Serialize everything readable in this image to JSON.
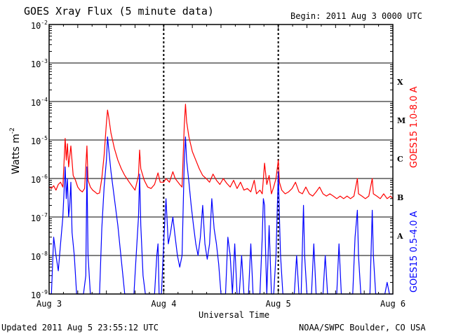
{
  "header": {
    "title": "GOES Xray Flux (5 minute data)",
    "begin": "Begin:  2011 Aug 3 0000 UTC"
  },
  "footer": {
    "updated": "Updated 2011 Aug  5 23:55:12 UTC",
    "credit": "NOAA/SWPC Boulder, CO USA"
  },
  "chart_data": {
    "type": "line",
    "title": "GOES Xray Flux (5 minute data)",
    "xlabel": "Universal Time",
    "ylabel": "Watts m",
    "ylabel_sup": "-2",
    "yscale": "log",
    "ylim": [
      1e-09,
      0.01
    ],
    "x_ticks": [
      "Aug 3",
      "Aug 4",
      "Aug 5",
      "Aug 6"
    ],
    "y_ticks": [
      {
        "base": "10",
        "exp": "-2"
      },
      {
        "base": "10",
        "exp": "-3"
      },
      {
        "base": "10",
        "exp": "-4"
      },
      {
        "base": "10",
        "exp": "-5"
      },
      {
        "base": "10",
        "exp": "-6"
      },
      {
        "base": "10",
        "exp": "-7"
      },
      {
        "base": "10",
        "exp": "-8"
      },
      {
        "base": "10",
        "exp": "-9"
      }
    ],
    "flare_classes": [
      "X",
      "M",
      "C",
      "B",
      "A"
    ],
    "grid": true,
    "series": [
      {
        "name": "GOES15 1.0-8.0 A",
        "color": "#ff0000",
        "points": [
          [
            0.0,
            6e-07
          ],
          [
            0.02,
            5.5e-07
          ],
          [
            0.04,
            6.5e-07
          ],
          [
            0.06,
            5e-07
          ],
          [
            0.08,
            7e-07
          ],
          [
            0.1,
            8e-07
          ],
          [
            0.12,
            6e-07
          ],
          [
            0.14,
            1.1e-05
          ],
          [
            0.15,
            3e-06
          ],
          [
            0.16,
            8e-06
          ],
          [
            0.17,
            2e-06
          ],
          [
            0.19,
            7e-06
          ],
          [
            0.21,
            1.2e-06
          ],
          [
            0.23,
            9e-07
          ],
          [
            0.25,
            6e-07
          ],
          [
            0.27,
            5e-07
          ],
          [
            0.29,
            4.5e-07
          ],
          [
            0.31,
            5.5e-07
          ],
          [
            0.33,
            7e-06
          ],
          [
            0.34,
            9e-07
          ],
          [
            0.36,
            6e-07
          ],
          [
            0.38,
            5e-07
          ],
          [
            0.4,
            4.5e-07
          ],
          [
            0.42,
            4e-07
          ],
          [
            0.44,
            4.2e-07
          ],
          [
            0.46,
            1e-06
          ],
          [
            0.48,
            4e-06
          ],
          [
            0.5,
            2.8e-05
          ],
          [
            0.51,
            6e-05
          ],
          [
            0.52,
            4e-05
          ],
          [
            0.54,
            1.5e-05
          ],
          [
            0.57,
            6e-06
          ],
          [
            0.6,
            3e-06
          ],
          [
            0.63,
            1.8e-06
          ],
          [
            0.66,
            1.2e-06
          ],
          [
            0.7,
            8e-07
          ],
          [
            0.73,
            6e-07
          ],
          [
            0.75,
            5e-07
          ],
          [
            0.78,
            1.2e-06
          ],
          [
            0.79,
            5.5e-06
          ],
          [
            0.8,
            1.8e-06
          ],
          [
            0.83,
            9e-07
          ],
          [
            0.86,
            6e-07
          ],
          [
            0.89,
            5.5e-07
          ],
          [
            0.92,
            7e-07
          ],
          [
            0.95,
            1.4e-06
          ],
          [
            0.97,
            8e-07
          ],
          [
            1.0,
            8e-07
          ],
          [
            1.02,
            1e-06
          ],
          [
            1.05,
            8e-07
          ],
          [
            1.08,
            1.5e-06
          ],
          [
            1.1,
            1e-06
          ],
          [
            1.14,
            7e-07
          ],
          [
            1.16,
            6e-07
          ],
          [
            1.18,
            2.5e-05
          ],
          [
            1.19,
            8.5e-05
          ],
          [
            1.2,
            3e-05
          ],
          [
            1.22,
            1.2e-05
          ],
          [
            1.25,
            5e-06
          ],
          [
            1.28,
            3e-06
          ],
          [
            1.31,
            1.8e-06
          ],
          [
            1.34,
            1.2e-06
          ],
          [
            1.37,
            1e-06
          ],
          [
            1.4,
            8e-07
          ],
          [
            1.43,
            1.3e-06
          ],
          [
            1.46,
            9e-07
          ],
          [
            1.49,
            7e-07
          ],
          [
            1.52,
            1e-06
          ],
          [
            1.55,
            7.5e-07
          ],
          [
            1.58,
            6e-07
          ],
          [
            1.61,
            9e-07
          ],
          [
            1.64,
            5.5e-07
          ],
          [
            1.67,
            8e-07
          ],
          [
            1.7,
            5e-07
          ],
          [
            1.73,
            5.5e-07
          ],
          [
            1.76,
            4.5e-07
          ],
          [
            1.79,
            9e-07
          ],
          [
            1.81,
            4e-07
          ],
          [
            1.84,
            5e-07
          ],
          [
            1.86,
            4e-07
          ],
          [
            1.88,
            2.5e-06
          ],
          [
            1.9,
            7e-07
          ],
          [
            1.92,
            1.2e-06
          ],
          [
            1.94,
            4e-07
          ],
          [
            1.96,
            6e-07
          ],
          [
            1.98,
            1e-06
          ],
          [
            2.0,
            3e-06
          ],
          [
            2.01,
            8e-07
          ],
          [
            2.03,
            5e-07
          ],
          [
            2.06,
            4e-07
          ],
          [
            2.09,
            4.5e-07
          ],
          [
            2.12,
            5.5e-07
          ],
          [
            2.15,
            8e-07
          ],
          [
            2.18,
            4.5e-07
          ],
          [
            2.21,
            4e-07
          ],
          [
            2.24,
            6e-07
          ],
          [
            2.27,
            4e-07
          ],
          [
            2.3,
            3.5e-07
          ],
          [
            2.33,
            4.5e-07
          ],
          [
            2.36,
            6e-07
          ],
          [
            2.39,
            4e-07
          ],
          [
            2.42,
            3.5e-07
          ],
          [
            2.45,
            4e-07
          ],
          [
            2.48,
            3.5e-07
          ],
          [
            2.51,
            3e-07
          ],
          [
            2.54,
            3.5e-07
          ],
          [
            2.57,
            3e-07
          ],
          [
            2.6,
            3.5e-07
          ],
          [
            2.63,
            3e-07
          ],
          [
            2.66,
            3.5e-07
          ],
          [
            2.69,
            1e-06
          ],
          [
            2.7,
            4e-07
          ],
          [
            2.73,
            3.5e-07
          ],
          [
            2.76,
            3e-07
          ],
          [
            2.79,
            3.5e-07
          ],
          [
            2.82,
            1e-06
          ],
          [
            2.83,
            4e-07
          ],
          [
            2.86,
            3.5e-07
          ],
          [
            2.89,
            3e-07
          ],
          [
            2.92,
            4e-07
          ],
          [
            2.95,
            3e-07
          ],
          [
            2.98,
            3.5e-07
          ],
          [
            3.0,
            3e-07
          ]
        ]
      },
      {
        "name": "GOES15 0.5-4.0 A",
        "color": "#0000ff",
        "points": [
          [
            0.0,
            1e-09
          ],
          [
            0.02,
            1e-09
          ],
          [
            0.04,
            3e-08
          ],
          [
            0.06,
            1e-08
          ],
          [
            0.08,
            4e-09
          ],
          [
            0.1,
            2e-08
          ],
          [
            0.12,
            1e-07
          ],
          [
            0.14,
            2e-06
          ],
          [
            0.15,
            3e-07
          ],
          [
            0.16,
            1e-06
          ],
          [
            0.17,
            1e-07
          ],
          [
            0.18,
            2e-07
          ],
          [
            0.19,
            8e-07
          ],
          [
            0.2,
            4e-08
          ],
          [
            0.22,
            1e-08
          ],
          [
            0.24,
            1e-09
          ],
          [
            0.26,
            1e-09
          ],
          [
            0.28,
            1e-09
          ],
          [
            0.3,
            1e-09
          ],
          [
            0.32,
            3e-09
          ],
          [
            0.33,
            2e-06
          ],
          [
            0.34,
            1e-08
          ],
          [
            0.36,
            1e-09
          ],
          [
            0.38,
            1e-09
          ],
          [
            0.4,
            1e-09
          ],
          [
            0.42,
            1e-09
          ],
          [
            0.44,
            1e-09
          ],
          [
            0.46,
            5e-08
          ],
          [
            0.48,
            6e-07
          ],
          [
            0.5,
            3e-06
          ],
          [
            0.51,
            1.2e-05
          ],
          [
            0.52,
            6e-06
          ],
          [
            0.54,
            1.5e-06
          ],
          [
            0.57,
            3e-07
          ],
          [
            0.6,
            6e-08
          ],
          [
            0.62,
            1.5e-08
          ],
          [
            0.64,
            4e-09
          ],
          [
            0.66,
            1e-09
          ],
          [
            0.68,
            1e-09
          ],
          [
            0.7,
            1e-09
          ],
          [
            0.72,
            1e-09
          ],
          [
            0.74,
            1e-09
          ],
          [
            0.76,
            1e-08
          ],
          [
            0.78,
            1e-07
          ],
          [
            0.79,
            1.3e-06
          ],
          [
            0.8,
            6e-08
          ],
          [
            0.82,
            3e-09
          ],
          [
            0.84,
            1e-09
          ],
          [
            0.86,
            1e-09
          ],
          [
            0.88,
            1e-09
          ],
          [
            0.9,
            1e-09
          ],
          [
            0.92,
            1e-09
          ],
          [
            0.94,
            1e-08
          ],
          [
            0.95,
            2e-08
          ],
          [
            0.96,
            1e-09
          ],
          [
            0.98,
            1e-09
          ],
          [
            1.0,
            2e-08
          ],
          [
            1.02,
            3e-07
          ],
          [
            1.04,
            2e-08
          ],
          [
            1.06,
            4e-08
          ],
          [
            1.08,
            1e-07
          ],
          [
            1.1,
            3e-08
          ],
          [
            1.12,
            1e-08
          ],
          [
            1.14,
            5e-09
          ],
          [
            1.16,
            1e-08
          ],
          [
            1.18,
            3e-06
          ],
          [
            1.19,
            1.2e-05
          ],
          [
            1.2,
            3e-06
          ],
          [
            1.22,
            8e-07
          ],
          [
            1.24,
            2e-07
          ],
          [
            1.26,
            6e-08
          ],
          [
            1.28,
            2e-08
          ],
          [
            1.3,
            1e-08
          ],
          [
            1.32,
            3e-08
          ],
          [
            1.34,
            2e-07
          ],
          [
            1.36,
            2e-08
          ],
          [
            1.38,
            8e-09
          ],
          [
            1.4,
            2e-08
          ],
          [
            1.42,
            3e-07
          ],
          [
            1.44,
            5e-08
          ],
          [
            1.46,
            2e-08
          ],
          [
            1.48,
            6e-09
          ],
          [
            1.5,
            1e-09
          ],
          [
            1.52,
            1e-09
          ],
          [
            1.54,
            1e-09
          ],
          [
            1.56,
            3e-08
          ],
          [
            1.58,
            1e-08
          ],
          [
            1.6,
            1e-09
          ],
          [
            1.62,
            2e-08
          ],
          [
            1.64,
            1e-09
          ],
          [
            1.66,
            1e-09
          ],
          [
            1.68,
            1e-08
          ],
          [
            1.7,
            1e-09
          ],
          [
            1.72,
            1e-09
          ],
          [
            1.74,
            1e-09
          ],
          [
            1.76,
            2e-08
          ],
          [
            1.78,
            1e-09
          ],
          [
            1.8,
            1e-09
          ],
          [
            1.82,
            1e-09
          ],
          [
            1.84,
            1e-09
          ],
          [
            1.86,
            3e-08
          ],
          [
            1.87,
            3e-07
          ],
          [
            1.88,
            2e-07
          ],
          [
            1.89,
            1e-08
          ],
          [
            1.9,
            1e-09
          ],
          [
            1.92,
            6e-08
          ],
          [
            1.94,
            1e-09
          ],
          [
            1.96,
            1e-09
          ],
          [
            1.98,
            1e-08
          ],
          [
            2.0,
            1.5e-06
          ],
          [
            2.01,
            1e-07
          ],
          [
            2.02,
            1e-08
          ],
          [
            2.04,
            1e-09
          ],
          [
            2.06,
            1e-09
          ],
          [
            2.08,
            1e-09
          ],
          [
            2.1,
            1e-09
          ],
          [
            2.12,
            1e-09
          ],
          [
            2.14,
            1e-09
          ],
          [
            2.16,
            1e-08
          ],
          [
            2.18,
            1e-09
          ],
          [
            2.2,
            1e-09
          ],
          [
            2.22,
            2e-07
          ],
          [
            2.23,
            1e-08
          ],
          [
            2.25,
            1e-09
          ],
          [
            2.27,
            1e-09
          ],
          [
            2.29,
            1e-09
          ],
          [
            2.31,
            2e-08
          ],
          [
            2.33,
            1e-09
          ],
          [
            2.35,
            1e-09
          ],
          [
            2.37,
            1e-09
          ],
          [
            2.39,
            1e-09
          ],
          [
            2.41,
            1e-08
          ],
          [
            2.43,
            1e-09
          ],
          [
            2.45,
            1e-09
          ],
          [
            2.47,
            1e-09
          ],
          [
            2.49,
            1e-09
          ],
          [
            2.51,
            1e-09
          ],
          [
            2.53,
            2e-08
          ],
          [
            2.55,
            1e-09
          ],
          [
            2.57,
            1e-09
          ],
          [
            2.59,
            1e-09
          ],
          [
            2.61,
            1e-09
          ],
          [
            2.63,
            1e-09
          ],
          [
            2.65,
            1e-09
          ],
          [
            2.67,
            3e-08
          ],
          [
            2.69,
            1.5e-07
          ],
          [
            2.7,
            1e-08
          ],
          [
            2.72,
            1e-09
          ],
          [
            2.74,
            1e-09
          ],
          [
            2.76,
            1e-09
          ],
          [
            2.78,
            1e-09
          ],
          [
            2.8,
            1e-09
          ],
          [
            2.82,
            1.5e-07
          ],
          [
            2.83,
            1e-08
          ],
          [
            2.85,
            1e-09
          ],
          [
            2.87,
            1e-09
          ],
          [
            2.89,
            1e-09
          ],
          [
            2.91,
            1e-09
          ],
          [
            2.93,
            1e-09
          ],
          [
            2.95,
            2e-09
          ],
          [
            2.97,
            1e-09
          ],
          [
            3.0,
            1e-09
          ]
        ]
      }
    ]
  }
}
